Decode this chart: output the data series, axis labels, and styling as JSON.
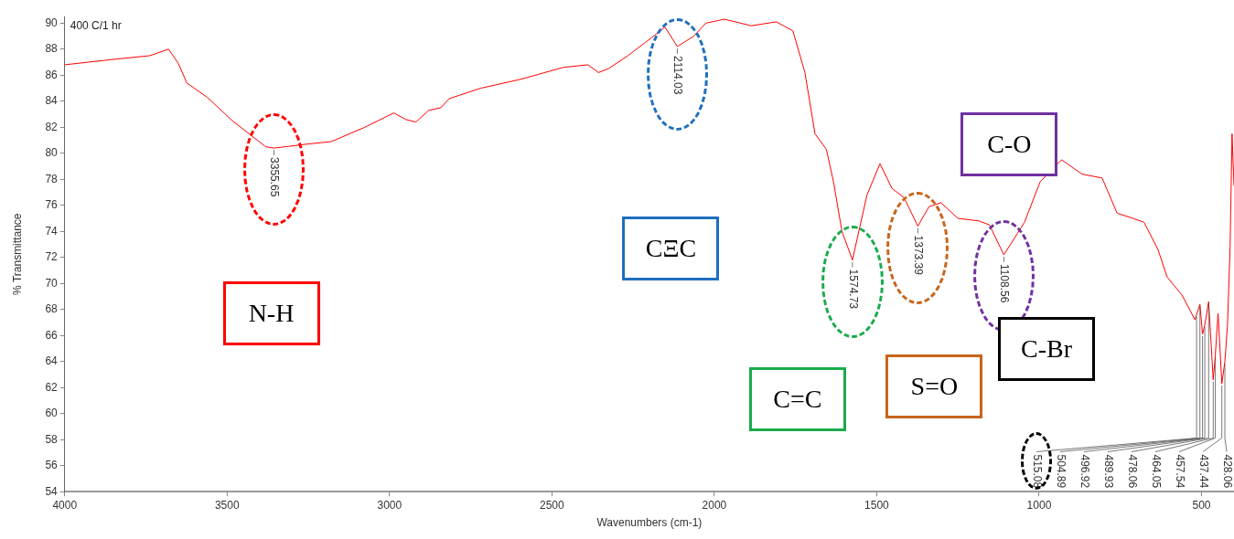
{
  "chart_data": {
    "type": "line",
    "xlabel": "Wavenumbers (cm-1)",
    "ylabel": "% Transmittance",
    "xlim": [
      4000,
      400
    ],
    "xticks": [
      4000,
      3500,
      3000,
      2500,
      2000,
      1500,
      1000,
      500
    ],
    "ylim": [
      54,
      90.5
    ],
    "yticks": [
      54,
      56,
      58,
      60,
      62,
      64,
      66,
      68,
      70,
      72,
      74,
      76,
      78,
      80,
      82,
      84,
      86,
      88,
      90
    ],
    "grid": false,
    "legend": false,
    "marker": "none",
    "line_style": "solid",
    "series": [
      {
        "color": "#ff0000",
        "x": [
          4000,
          3855,
          3738,
          3680,
          3650,
          3624,
          3561,
          3484,
          3381,
          3355.65,
          3256,
          3179,
          3076,
          2987,
          2950,
          2919,
          2879,
          2842,
          2816,
          2719,
          2594,
          2465,
          2389,
          2357,
          2326,
          2266,
          2192,
          2152,
          2114.03,
          2063,
          2026,
          1969,
          1886,
          1809,
          1758,
          1721,
          1690,
          1655,
          1633,
          1607,
          1574.73,
          1530,
          1490,
          1453,
          1416,
          1373.39,
          1339,
          1302,
          1250,
          1185,
          1153,
          1108.56,
          1045,
          997,
          931,
          868,
          806,
          760,
          711,
          677,
          634,
          606,
          560,
          520,
          515.08,
          504.89,
          496.92,
          489.93,
          478.06,
          464.05,
          457.54,
          449,
          437.44,
          428.06,
          420,
          412,
          406,
          400
        ],
        "values": [
          86.8,
          87.2,
          87.5,
          88.0,
          86.9,
          85.4,
          84.3,
          82.5,
          80.5,
          80.4,
          80.7,
          80.9,
          82.0,
          83.1,
          82.6,
          82.4,
          83.3,
          83.5,
          84.2,
          85.0,
          85.7,
          86.6,
          86.8,
          86.2,
          86.5,
          87.5,
          88.9,
          89.7,
          88.2,
          89.0,
          90.0,
          90.3,
          89.8,
          90.1,
          89.4,
          86.2,
          81.5,
          80.3,
          77.8,
          74.0,
          71.8,
          76.8,
          79.2,
          77.3,
          76.6,
          74.4,
          75.9,
          76.2,
          75.0,
          74.8,
          74.5,
          72.2,
          74.7,
          77.8,
          79.5,
          78.4,
          78.1,
          75.4,
          75.0,
          74.7,
          72.6,
          70.5,
          69.1,
          67.2,
          67.6,
          68.4,
          66.1,
          66.8,
          68.6,
          62.6,
          64.5,
          67.7,
          62.3,
          64.0,
          66.8,
          72.8,
          81.5,
          77.5
        ]
      }
    ],
    "annotations": [
      "400 C/1 hr",
      "N-H",
      "CΞC",
      "C=C",
      "S=O",
      "C-O",
      "C-Br",
      {
        "text": "3355.65",
        "x": 3355.65,
        "y": 80.4
      },
      {
        "text": "2114.03",
        "x": 2114.03,
        "y": 88.2
      },
      {
        "text": "1574.73",
        "x": 1574.73,
        "y": 71.8
      },
      {
        "text": "1373.39",
        "x": 1373.39,
        "y": 74.4
      },
      {
        "text": "1108.56",
        "x": 1108.56,
        "y": 72.2
      },
      {
        "text": "515.08",
        "x": 515.08,
        "y": 67.6
      },
      {
        "text": "504.89",
        "x": 504.89,
        "y": 68.4
      },
      {
        "text": "496.92",
        "x": 496.92,
        "y": 66.1
      },
      {
        "text": "489.93",
        "x": 489.93,
        "y": 66.8
      },
      {
        "text": "478.06",
        "x": 478.06,
        "y": 68.6
      },
      {
        "text": "464.05",
        "x": 464.05,
        "y": 62.6
      },
      {
        "text": "457.54",
        "x": 457.54,
        "y": 64.5
      },
      {
        "text": "437.44",
        "x": 437.44,
        "y": 62.3
      },
      {
        "text": "428.06",
        "x": 428.06,
        "y": 64.0
      }
    ]
  }
}
